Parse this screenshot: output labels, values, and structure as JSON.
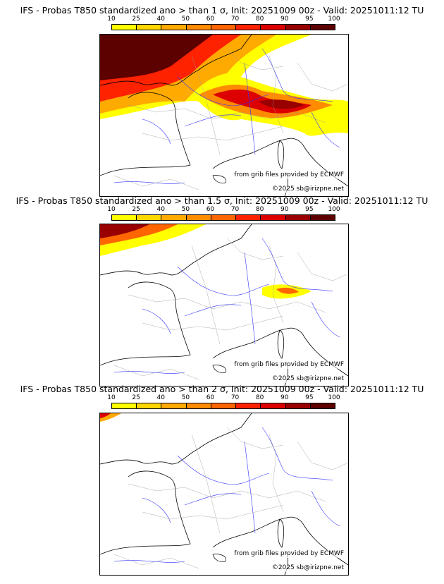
{
  "panels": [
    {
      "title": "IFS - Probas T850  standardized ano > than 1 σ, Init: 20251009 00z - Valid: 20251011:12 TU",
      "threshold_sigma": 1
    },
    {
      "title": "IFS - Probas T850  standardized ano > than 1.5 σ, Init: 20251009 00z - Valid: 20251011:12 TU",
      "threshold_sigma": 1.5
    },
    {
      "title": "IFS - Probas T850  standardized ano > than 2 σ, Init: 20251009 00z - Valid: 20251011:12 TU",
      "threshold_sigma": 2
    }
  ],
  "colorbar": {
    "ticks": [
      "10",
      "25",
      "40",
      "50",
      "60",
      "70",
      "80",
      "90",
      "95",
      "100"
    ],
    "colors": [
      "#ffff00",
      "#ffd700",
      "#ffaa00",
      "#ff8c00",
      "#ff6600",
      "#ff2200",
      "#dd0000",
      "#990000",
      "#5c0000"
    ]
  },
  "credits": {
    "source": "from grib files provided by ECMWF",
    "copyright": "©2025 sb@irizpne.net"
  }
}
